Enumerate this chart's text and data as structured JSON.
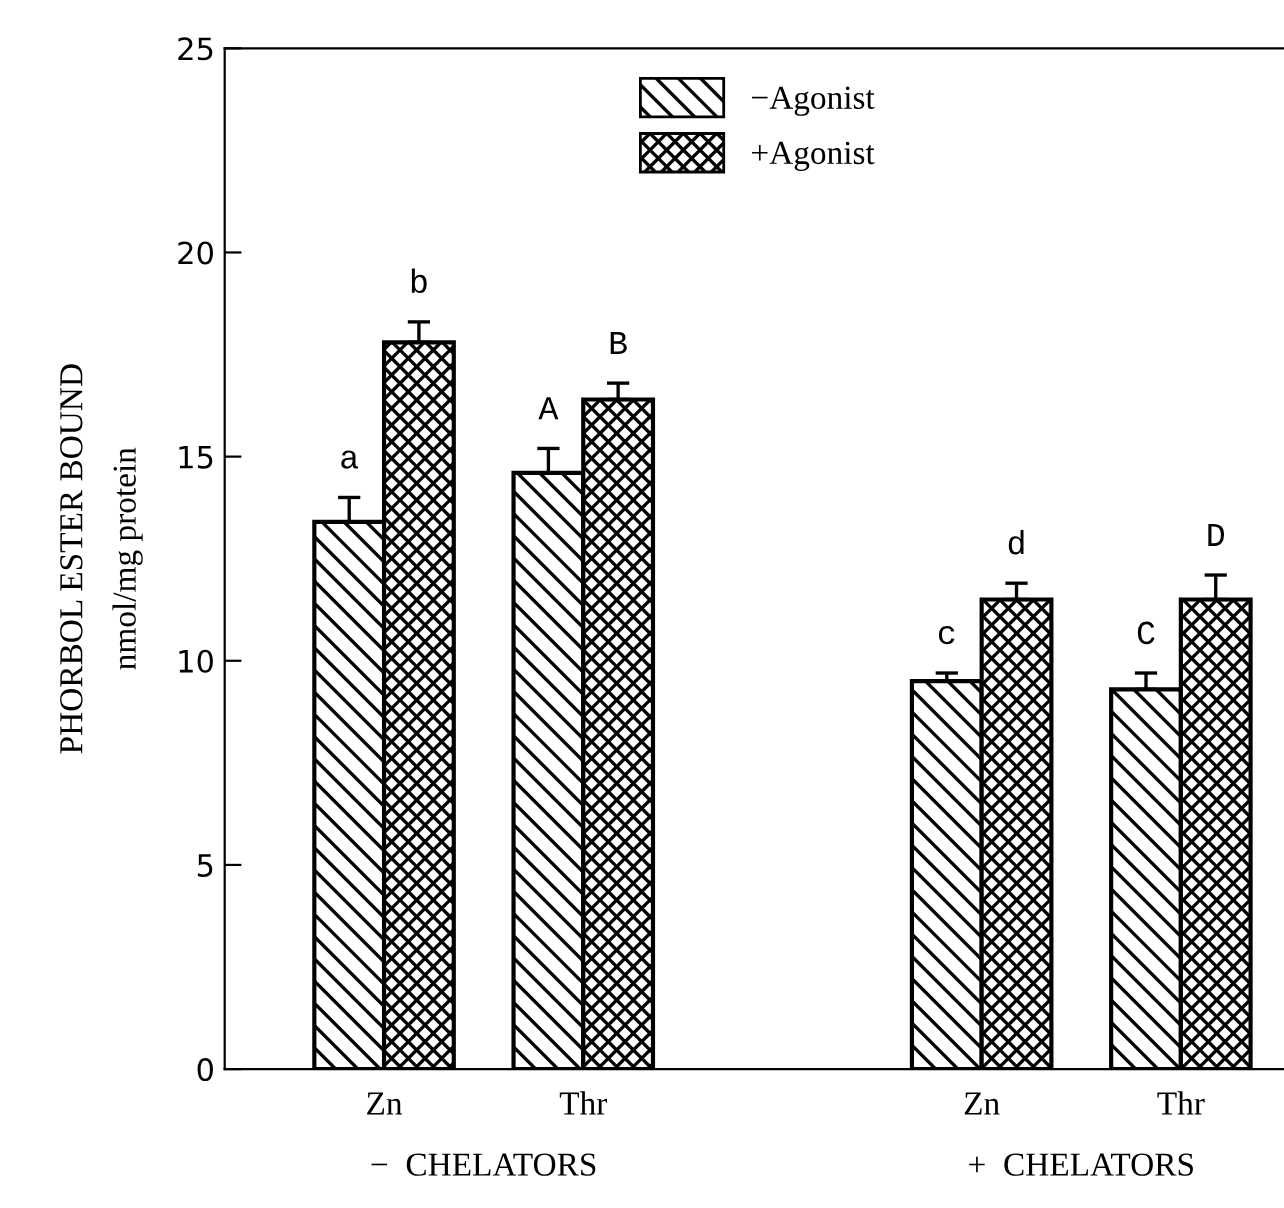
{
  "chart_data": {
    "type": "bar",
    "ylabel": "PHORBOL ESTER BOUND\nnmol/mg protein",
    "categories": [
      "Zn",
      "Thr",
      null,
      "Zn",
      "Thr"
    ],
    "series": [
      {
        "name": "−Agonist",
        "color": "#000000",
        "values": [
          13.4,
          14.6,
          null,
          9.5,
          9.3
        ],
        "errors": [
          [
            13.4,
            14.0
          ],
          [
            14.6,
            15.2
          ],
          null,
          [
            9.5,
            9.7
          ],
          [
            9.3,
            9.7
          ]
        ],
        "value_labels": [
          "a",
          "A",
          null,
          "c",
          "C"
        ]
      },
      {
        "name": "+Agonist",
        "color": "#000000",
        "values": [
          17.8,
          16.4,
          null,
          11.5,
          11.5
        ],
        "errors": [
          [
            17.8,
            18.3
          ],
          [
            16.4,
            16.8
          ],
          null,
          [
            11.5,
            11.9
          ],
          [
            11.5,
            12.1
          ]
        ],
        "value_labels": [
          "b",
          "B",
          null,
          "d",
          "D"
        ]
      }
    ],
    "annotations": [
      "−  CHELATORS",
      "+  CHELATORS"
    ],
    "ylim": [
      0,
      25
    ],
    "yticks": [
      0,
      5,
      10,
      15,
      20,
      25
    ],
    "legend": "top",
    "grid": false
  }
}
